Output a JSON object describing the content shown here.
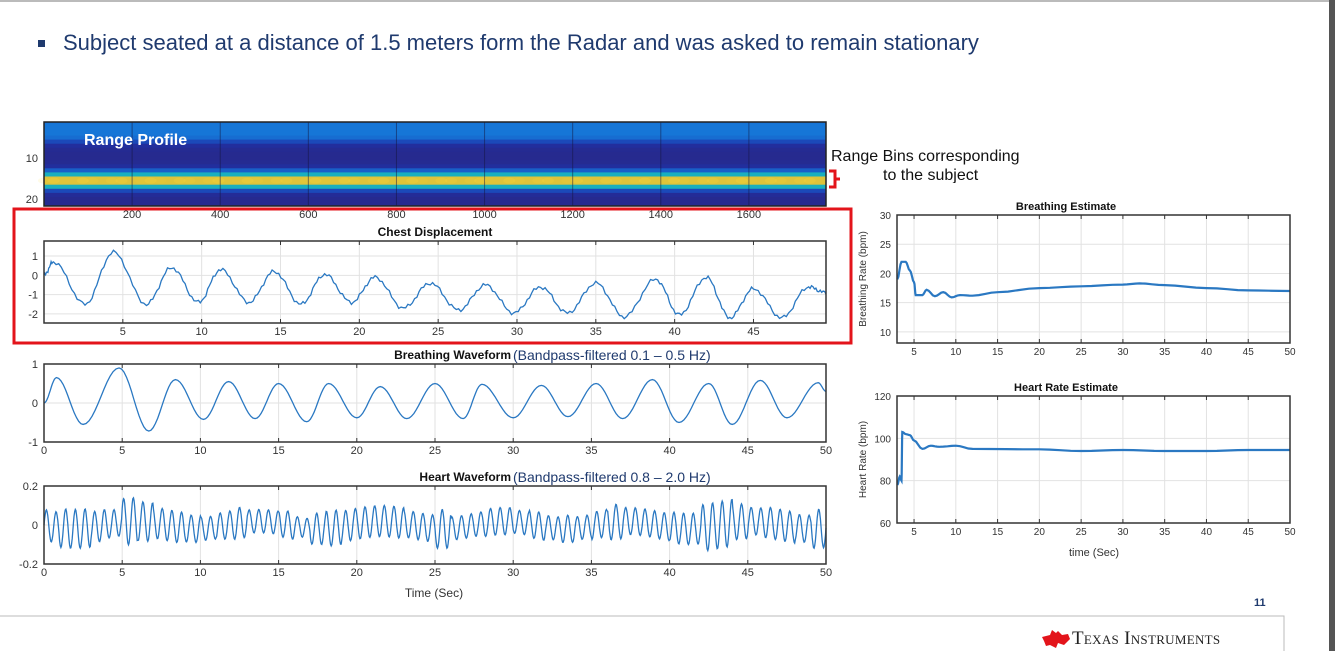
{
  "slide": {
    "headline": "Subject seated at a distance of 1.5 meters form the Radar and was asked to remain stationary",
    "annotation_line1": "Range Bins corresponding",
    "annotation_line2": "to the subject",
    "page_number": "11",
    "logo_text": "Texas Instruments",
    "colors": {
      "title": "#1f3a6e",
      "highlight": "#e3141b",
      "line": "#2a78c2",
      "logo": "#e3141b"
    }
  },
  "chart_data": [
    {
      "id": "range",
      "type": "heatmap",
      "title": "Range Profile",
      "xlabel": "",
      "ylabel": "",
      "xlim": [
        0,
        1775
      ],
      "ylim": [
        1.2,
        21.7
      ],
      "xticks": [
        200,
        400,
        600,
        800,
        1000,
        1200,
        1400,
        1600
      ],
      "yticks": [
        10,
        20
      ],
      "bins": [
        1,
        2,
        3,
        4,
        5,
        6,
        7,
        8,
        9,
        10,
        11,
        12,
        13,
        14,
        15,
        16,
        17,
        18,
        19,
        20,
        21
      ],
      "intensity": [
        0.28,
        0.3,
        0.3,
        0.3,
        0.28,
        0.2,
        0.1,
        0.06,
        0.05,
        0.05,
        0.06,
        0.1,
        0.25,
        0.5,
        0.82,
        0.82,
        0.5,
        0.2,
        0.08,
        0.05,
        0.05
      ]
    },
    {
      "id": "chest",
      "type": "line",
      "title": "Chest Displacement",
      "xlabel": "",
      "ylabel": "",
      "xlim": [
        0,
        49.6
      ],
      "ylim": [
        -2.47,
        1.78
      ],
      "xticks": [
        5,
        10,
        15,
        20,
        25,
        30,
        35,
        40,
        45
      ],
      "yticks": [
        1,
        0,
        -1,
        -2
      ],
      "grid": true,
      "keypoints": [
        [
          0,
          0
        ],
        [
          0.6,
          0.7
        ],
        [
          2.6,
          -1.5
        ],
        [
          4.4,
          1.2
        ],
        [
          6.5,
          -1.5
        ],
        [
          8.1,
          0.4
        ],
        [
          9.8,
          -1.4
        ],
        [
          11.2,
          0.3
        ],
        [
          13,
          -1.4
        ],
        [
          14.6,
          0.2
        ],
        [
          16.3,
          -1.5
        ],
        [
          17.8,
          0.05
        ],
        [
          19.5,
          -1.4
        ],
        [
          21,
          -0.1
        ],
        [
          22.8,
          -1.7
        ],
        [
          24.5,
          -0.4
        ],
        [
          26.3,
          -1.8
        ],
        [
          28,
          -0.5
        ],
        [
          29.8,
          -1.95
        ],
        [
          31.5,
          -0.6
        ],
        [
          33.2,
          -1.95
        ],
        [
          35,
          -0.4
        ],
        [
          36.8,
          -2.15
        ],
        [
          38.8,
          -0.2
        ],
        [
          40.3,
          -2.05
        ],
        [
          42,
          -0.1
        ],
        [
          43.5,
          -2.2
        ],
        [
          45,
          -0.7
        ],
        [
          46.8,
          -2.2
        ],
        [
          48.5,
          -0.6
        ],
        [
          49.6,
          -0.9
        ]
      ]
    },
    {
      "id": "breath",
      "type": "line",
      "title": "Breathing Waveform",
      "subtitle": "(Bandpass-filtered 0.1 – 0.5 Hz)",
      "xlabel": "",
      "ylabel": "",
      "xlim": [
        0,
        50
      ],
      "ylim": [
        -1,
        1
      ],
      "xticks": [
        0,
        5,
        10,
        15,
        20,
        25,
        30,
        35,
        40,
        45,
        50
      ],
      "yticks": [
        1,
        0,
        -1
      ],
      "grid": true,
      "keypoints": [
        [
          0,
          0
        ],
        [
          0.8,
          0.65
        ],
        [
          2.5,
          -0.55
        ],
        [
          4.8,
          0.9
        ],
        [
          6.7,
          -0.72
        ],
        [
          8.4,
          0.6
        ],
        [
          10.2,
          -0.42
        ],
        [
          11.8,
          0.55
        ],
        [
          13.5,
          -0.4
        ],
        [
          15,
          0.5
        ],
        [
          16.8,
          -0.48
        ],
        [
          18.2,
          0.5
        ],
        [
          20,
          -0.38
        ],
        [
          21.5,
          0.42
        ],
        [
          23.2,
          -0.4
        ],
        [
          25,
          0.5
        ],
        [
          26.8,
          -0.4
        ],
        [
          28,
          0.48
        ],
        [
          30,
          -0.38
        ],
        [
          31.8,
          0.45
        ],
        [
          33.5,
          -0.35
        ],
        [
          35.3,
          0.5
        ],
        [
          37,
          -0.4
        ],
        [
          38.9,
          0.6
        ],
        [
          40.6,
          -0.5
        ],
        [
          42.5,
          0.5
        ],
        [
          44,
          -0.55
        ],
        [
          45.8,
          0.58
        ],
        [
          47.5,
          -0.38
        ],
        [
          49.5,
          0.52
        ],
        [
          50,
          0.3
        ]
      ]
    },
    {
      "id": "heart",
      "type": "line",
      "title": "Heart Waveform",
      "subtitle": "(Bandpass-filtered 0.8 – 2.0  Hz)",
      "xlabel": "Time (Sec)",
      "ylabel": "",
      "xlim": [
        0,
        50
      ],
      "ylim": [
        -0.2,
        0.2
      ],
      "xticks": [
        0,
        5,
        10,
        15,
        20,
        25,
        30,
        35,
        40,
        45,
        50
      ],
      "yticks": [
        0.2,
        0,
        -0.2
      ],
      "grid": true,
      "freq_hz": 1.62,
      "amplitude_per_sec": [
        0.08,
        0.1,
        0.1,
        0.08,
        0.07,
        0.12,
        0.1,
        0.08,
        0.08,
        0.07,
        0.06,
        0.07,
        0.08,
        0.06,
        0.06,
        0.07,
        0.05,
        0.08,
        0.09,
        0.08,
        0.08,
        0.08,
        0.08,
        0.07,
        0.07,
        0.1,
        0.06,
        0.06,
        0.07,
        0.07,
        0.06,
        0.07,
        0.06,
        0.07,
        0.06,
        0.07,
        0.09,
        0.07,
        0.07,
        0.07,
        0.08,
        0.08,
        0.12,
        0.12,
        0.09,
        0.07,
        0.08,
        0.08,
        0.07,
        0.1
      ]
    },
    {
      "id": "brest",
      "type": "line",
      "title": "Breathing Estimate",
      "xlabel": "",
      "ylabel": "Breathing Rate (bpm)",
      "xlim": [
        2.96,
        50
      ],
      "ylim": [
        8.1,
        30
      ],
      "xticks": [
        5,
        10,
        15,
        20,
        25,
        30,
        35,
        40,
        45,
        50
      ],
      "yticks": [
        30,
        25,
        20,
        15,
        10
      ],
      "grid": true,
      "points": [
        [
          3,
          19
        ],
        [
          3.5,
          22
        ],
        [
          4,
          22
        ],
        [
          4.5,
          20.5
        ],
        [
          5,
          18.5
        ],
        [
          5.2,
          16.3
        ],
        [
          6,
          16.3
        ],
        [
          6.5,
          17.2
        ],
        [
          7.5,
          16.1
        ],
        [
          8.5,
          16.8
        ],
        [
          9.5,
          15.9
        ],
        [
          10.5,
          16.3
        ],
        [
          12,
          16.2
        ],
        [
          15,
          16.8
        ],
        [
          20,
          17.5
        ],
        [
          25,
          17.8
        ],
        [
          30,
          18.1
        ],
        [
          32,
          18.3
        ],
        [
          35,
          18
        ],
        [
          40,
          17.5
        ],
        [
          45,
          17.1
        ],
        [
          50,
          17
        ]
      ]
    },
    {
      "id": "hrest",
      "type": "line",
      "title": "Heart Rate Estimate",
      "xlabel": "time (Sec)",
      "ylabel": "Heart Rate (bpm)",
      "xlim": [
        2.96,
        50
      ],
      "ylim": [
        60,
        120
      ],
      "xticks": [
        5,
        10,
        15,
        20,
        25,
        30,
        35,
        40,
        45,
        50
      ],
      "yticks": [
        120,
        100,
        80,
        60
      ],
      "grid": true,
      "points": [
        [
          3,
          78
        ],
        [
          3.3,
          82
        ],
        [
          3.5,
          80
        ],
        [
          3.6,
          103
        ],
        [
          4,
          102
        ],
        [
          4.5,
          101.5
        ],
        [
          5,
          99
        ],
        [
          6,
          95
        ],
        [
          7,
          96.5
        ],
        [
          8,
          96
        ],
        [
          10,
          96.5
        ],
        [
          12,
          95
        ],
        [
          20,
          94.8
        ],
        [
          25,
          94
        ],
        [
          30,
          94.5
        ],
        [
          35,
          94
        ],
        [
          40,
          94
        ],
        [
          45,
          94.5
        ],
        [
          50,
          94.5
        ]
      ]
    }
  ]
}
